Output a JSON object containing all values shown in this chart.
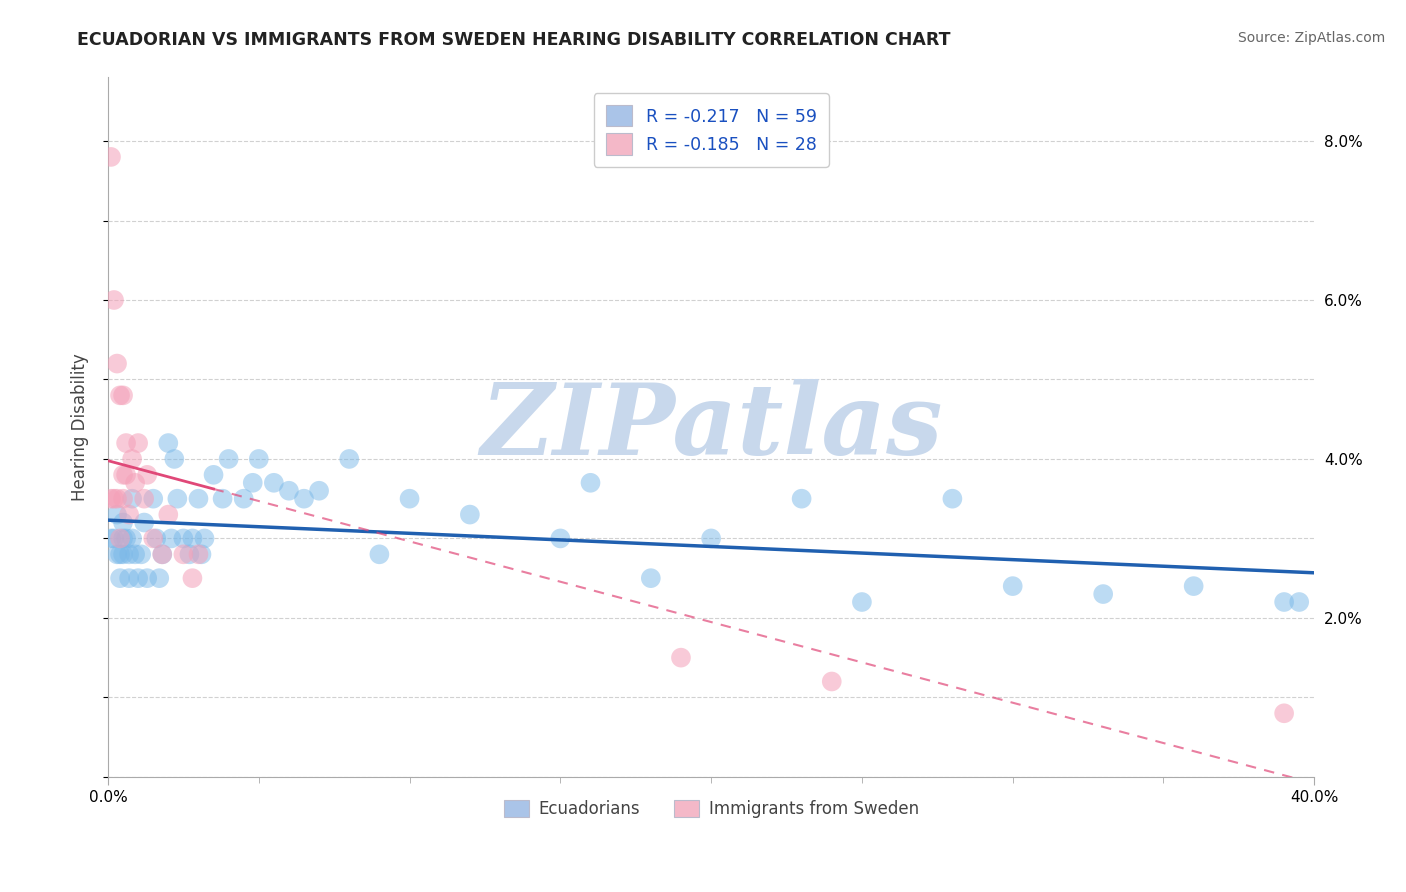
{
  "title": "ECUADORIAN VS IMMIGRANTS FROM SWEDEN HEARING DISABILITY CORRELATION CHART",
  "source": "Source: ZipAtlas.com",
  "ylabel": "Hearing Disability",
  "ylabel_right_ticks": [
    "8.0%",
    "6.0%",
    "4.0%",
    "2.0%"
  ],
  "ylabel_right_values": [
    0.08,
    0.06,
    0.04,
    0.02
  ],
  "xmin": 0.0,
  "xmax": 0.4,
  "ymin": 0.0,
  "ymax": 0.088,
  "legend_blue_label": "R = -0.217   N = 59",
  "legend_pink_label": "R = -0.185   N = 28",
  "legend_blue_color": "#aac4e8",
  "legend_pink_color": "#f4b8c8",
  "scatter_blue_color": "#7ab8e8",
  "scatter_pink_color": "#f4a0b8",
  "trendline_blue_color": "#2060b0",
  "trendline_pink_color": "#e04878",
  "watermark_text": "ZIPatlas",
  "watermark_color": "#c8d8ec",
  "background_color": "#ffffff",
  "grid_color": "#cccccc",
  "bottom_legend_labels": [
    "Ecuadorians",
    "Immigrants from Sweden"
  ],
  "blue_x": [
    0.001,
    0.002,
    0.003,
    0.003,
    0.004,
    0.004,
    0.005,
    0.005,
    0.005,
    0.006,
    0.007,
    0.007,
    0.008,
    0.008,
    0.009,
    0.01,
    0.011,
    0.012,
    0.013,
    0.015,
    0.016,
    0.017,
    0.018,
    0.02,
    0.021,
    0.022,
    0.023,
    0.025,
    0.027,
    0.028,
    0.03,
    0.031,
    0.032,
    0.035,
    0.038,
    0.04,
    0.045,
    0.048,
    0.05,
    0.055,
    0.06,
    0.065,
    0.07,
    0.08,
    0.09,
    0.1,
    0.12,
    0.15,
    0.16,
    0.18,
    0.2,
    0.23,
    0.25,
    0.28,
    0.3,
    0.33,
    0.36,
    0.39,
    0.395
  ],
  "blue_y": [
    0.03,
    0.03,
    0.028,
    0.033,
    0.028,
    0.025,
    0.03,
    0.028,
    0.032,
    0.03,
    0.028,
    0.025,
    0.035,
    0.03,
    0.028,
    0.025,
    0.028,
    0.032,
    0.025,
    0.035,
    0.03,
    0.025,
    0.028,
    0.042,
    0.03,
    0.04,
    0.035,
    0.03,
    0.028,
    0.03,
    0.035,
    0.028,
    0.03,
    0.038,
    0.035,
    0.04,
    0.035,
    0.037,
    0.04,
    0.037,
    0.036,
    0.035,
    0.036,
    0.04,
    0.028,
    0.035,
    0.033,
    0.03,
    0.037,
    0.025,
    0.03,
    0.035,
    0.022,
    0.035,
    0.024,
    0.023,
    0.024,
    0.022,
    0.022
  ],
  "pink_x": [
    0.001,
    0.001,
    0.002,
    0.002,
    0.003,
    0.003,
    0.004,
    0.004,
    0.005,
    0.005,
    0.005,
    0.006,
    0.006,
    0.007,
    0.008,
    0.009,
    0.01,
    0.012,
    0.013,
    0.015,
    0.018,
    0.02,
    0.025,
    0.028,
    0.03,
    0.19,
    0.24,
    0.39
  ],
  "pink_y": [
    0.078,
    0.035,
    0.06,
    0.035,
    0.052,
    0.035,
    0.048,
    0.03,
    0.048,
    0.038,
    0.035,
    0.038,
    0.042,
    0.033,
    0.04,
    0.037,
    0.042,
    0.035,
    0.038,
    0.03,
    0.028,
    0.033,
    0.028,
    0.025,
    0.028,
    0.015,
    0.012,
    0.008
  ]
}
